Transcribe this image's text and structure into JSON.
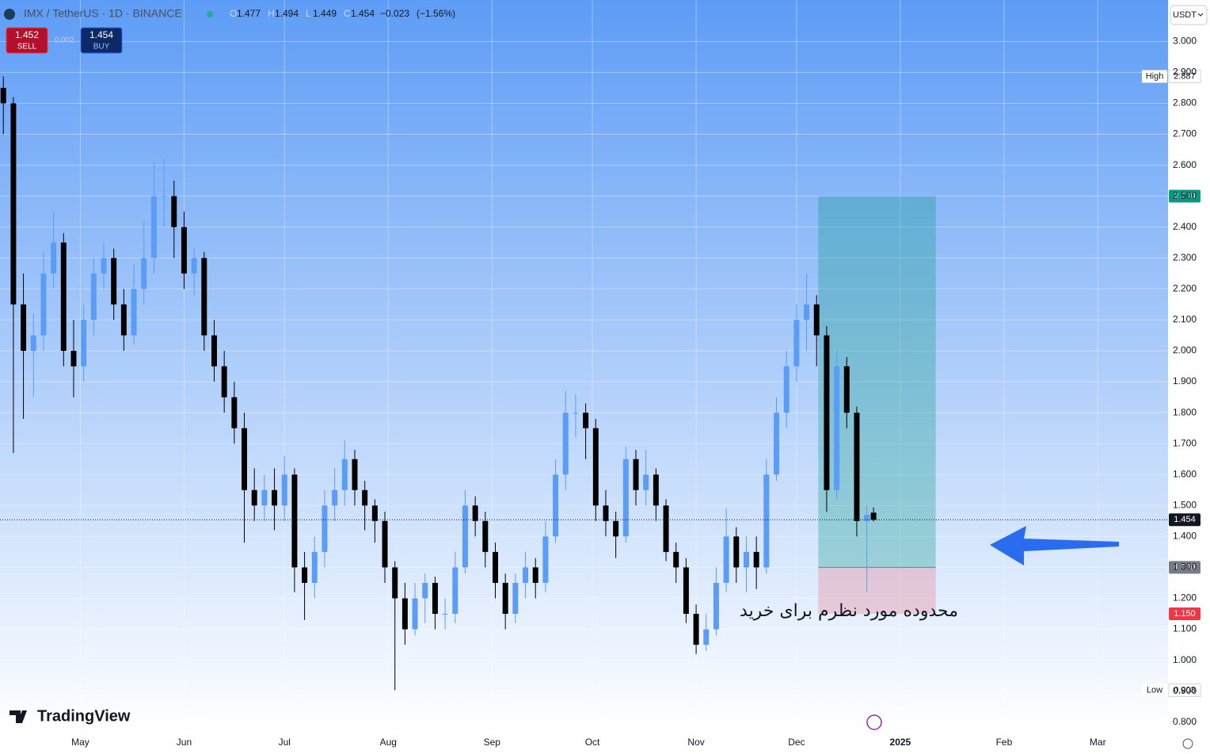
{
  "chart_data": {
    "type": "candlestick",
    "symbol": "IMX / TetherUS · 1D · BINANCE",
    "ohlc": [
      {
        "label": "O",
        "value": 1.477
      },
      {
        "label": "H",
        "value": 1.494
      },
      {
        "label": "L",
        "value": 1.449
      },
      {
        "label": "C",
        "value": 1.454
      }
    ],
    "change": {
      "value": -0.023,
      "label": "−0.023"
    },
    "change_percent": {
      "value": -1.56,
      "label": "(−1.56%)"
    },
    "sell": {
      "price": 1.452,
      "label": "SELL"
    },
    "buy": {
      "price": 1.454,
      "label": "BUY"
    },
    "spread": 0.002,
    "currency": "USDT",
    "brand": "TradingView",
    "annotation": "محدوده مورد نظرم برای خرید",
    "up_color": "#5b9cf6",
    "down_color": "#000000",
    "grid": true,
    "xlim": [
      97,
      446
    ],
    "ylim": [
      0.766,
      3.134
    ],
    "xticks": [
      {
        "value": 121,
        "label": "May"
      },
      {
        "value": 152,
        "label": "Jun"
      },
      {
        "value": 182,
        "label": "Jul"
      },
      {
        "value": 213,
        "label": "Aug"
      },
      {
        "value": 244,
        "label": "Sep"
      },
      {
        "value": 274,
        "label": "Oct"
      },
      {
        "value": 305,
        "label": "Nov"
      },
      {
        "value": 335,
        "label": "Dec"
      },
      {
        "value": 366,
        "label": "2025"
      },
      {
        "value": 397,
        "label": "Feb"
      },
      {
        "value": 425,
        "label": "Mar"
      }
    ],
    "yticks": [
      {
        "value": 0.8,
        "label": "0.800"
      },
      {
        "value": 0.9,
        "label": "0.900"
      },
      {
        "value": 1.0,
        "label": "1.000"
      },
      {
        "value": 1.1,
        "label": "1.100"
      },
      {
        "value": 1.2,
        "label": "1.200"
      },
      {
        "value": 1.3,
        "label": "1.300"
      },
      {
        "value": 1.4,
        "label": "1.400"
      },
      {
        "value": 1.5,
        "label": "1.500"
      },
      {
        "value": 1.6,
        "label": "1.600"
      },
      {
        "value": 1.7,
        "label": "1.700"
      },
      {
        "value": 1.8,
        "label": "1.800"
      },
      {
        "value": 1.9,
        "label": "1.900"
      },
      {
        "value": 2.0,
        "label": "2.000"
      },
      {
        "value": 2.1,
        "label": "2.100"
      },
      {
        "value": 2.2,
        "label": "2.200"
      },
      {
        "value": 2.3,
        "label": "2.300"
      },
      {
        "value": 2.4,
        "label": "2.400"
      },
      {
        "value": 2.5,
        "label": "2.500"
      },
      {
        "value": 2.6,
        "label": "2.600"
      },
      {
        "value": 2.7,
        "label": "2.700"
      },
      {
        "value": 2.8,
        "label": "2.800"
      },
      {
        "value": 2.9,
        "label": "2.900"
      },
      {
        "value": 3.0,
        "label": "3.000"
      }
    ],
    "last_price": 1.454,
    "high": {
      "label": "High",
      "value": 2.887
    },
    "low": {
      "label": "Low",
      "value": 0.903
    },
    "position": {
      "start": 341.5,
      "end": 376.6,
      "entry": {
        "value": 1.3,
        "label": "1.300"
      },
      "target": {
        "value": 2.5,
        "label": "2.500"
      },
      "stop": {
        "value": 1.15,
        "label": "1.150"
      }
    },
    "candles": [
      [
        98,
        2.85,
        2.887,
        2.7,
        2.8
      ],
      [
        101,
        2.8,
        2.82,
        1.67,
        2.15
      ],
      [
        104,
        2.15,
        2.25,
        1.78,
        2.0
      ],
      [
        107,
        2.0,
        2.12,
        1.85,
        2.05
      ],
      [
        110,
        2.05,
        2.32,
        2.0,
        2.25
      ],
      [
        113,
        2.25,
        2.45,
        2.2,
        2.35
      ],
      [
        116,
        2.35,
        2.38,
        1.95,
        2.0
      ],
      [
        119,
        2.0,
        2.1,
        1.85,
        1.95
      ],
      [
        122,
        1.95,
        2.15,
        1.9,
        2.1
      ],
      [
        125,
        2.1,
        2.3,
        2.05,
        2.25
      ],
      [
        128,
        2.25,
        2.35,
        2.2,
        2.3
      ],
      [
        131,
        2.3,
        2.33,
        2.1,
        2.15
      ],
      [
        134,
        2.15,
        2.2,
        2.0,
        2.05
      ],
      [
        137,
        2.05,
        2.28,
        2.02,
        2.2
      ],
      [
        140,
        2.2,
        2.42,
        2.15,
        2.3
      ],
      [
        143,
        2.3,
        2.61,
        2.25,
        2.5
      ],
      [
        146,
        2.5,
        2.62,
        2.4,
        2.5
      ],
      [
        149,
        2.5,
        2.55,
        2.3,
        2.4
      ],
      [
        152,
        2.4,
        2.45,
        2.2,
        2.25
      ],
      [
        155,
        2.25,
        2.33,
        2.18,
        2.3
      ],
      [
        158,
        2.3,
        2.32,
        2.0,
        2.05
      ],
      [
        161,
        2.05,
        2.1,
        1.9,
        1.95
      ],
      [
        164,
        1.95,
        2.0,
        1.8,
        1.85
      ],
      [
        167,
        1.85,
        1.9,
        1.7,
        1.75
      ],
      [
        170,
        1.75,
        1.8,
        1.38,
        1.55
      ],
      [
        173,
        1.55,
        1.62,
        1.45,
        1.5
      ],
      [
        176,
        1.5,
        1.6,
        1.45,
        1.55
      ],
      [
        179,
        1.55,
        1.62,
        1.42,
        1.5
      ],
      [
        182,
        1.5,
        1.66,
        1.45,
        1.6
      ],
      [
        185,
        1.6,
        1.62,
        1.22,
        1.3
      ],
      [
        188,
        1.3,
        1.35,
        1.13,
        1.25
      ],
      [
        191,
        1.25,
        1.4,
        1.2,
        1.35
      ],
      [
        194,
        1.35,
        1.55,
        1.3,
        1.5
      ],
      [
        197,
        1.5,
        1.62,
        1.45,
        1.55
      ],
      [
        200,
        1.55,
        1.71,
        1.5,
        1.65
      ],
      [
        203,
        1.65,
        1.68,
        1.5,
        1.55
      ],
      [
        206,
        1.55,
        1.58,
        1.42,
        1.5
      ],
      [
        209,
        1.5,
        1.52,
        1.38,
        1.45
      ],
      [
        212,
        1.45,
        1.48,
        1.25,
        1.3
      ],
      [
        215,
        1.3,
        1.32,
        0.903,
        1.2
      ],
      [
        218,
        1.2,
        1.25,
        1.05,
        1.1
      ],
      [
        221,
        1.1,
        1.25,
        1.08,
        1.2
      ],
      [
        224,
        1.2,
        1.28,
        1.12,
        1.25
      ],
      [
        227,
        1.25,
        1.27,
        1.1,
        1.15
      ],
      [
        230,
        1.15,
        1.2,
        1.1,
        1.15
      ],
      [
        233,
        1.15,
        1.35,
        1.12,
        1.3
      ],
      [
        236,
        1.3,
        1.55,
        1.28,
        1.5
      ],
      [
        239,
        1.5,
        1.53,
        1.4,
        1.45
      ],
      [
        242,
        1.45,
        1.48,
        1.3,
        1.35
      ],
      [
        245,
        1.35,
        1.38,
        1.2,
        1.25
      ],
      [
        248,
        1.25,
        1.28,
        1.1,
        1.15
      ],
      [
        251,
        1.15,
        1.28,
        1.12,
        1.25
      ],
      [
        254,
        1.25,
        1.35,
        1.2,
        1.3
      ],
      [
        257,
        1.3,
        1.33,
        1.2,
        1.25
      ],
      [
        260,
        1.25,
        1.45,
        1.22,
        1.4
      ],
      [
        263,
        1.4,
        1.65,
        1.38,
        1.6
      ],
      [
        266,
        1.6,
        1.87,
        1.55,
        1.8
      ],
      [
        269,
        1.8,
        1.86,
        1.72,
        1.8
      ],
      [
        272,
        1.8,
        1.83,
        1.65,
        1.75
      ],
      [
        275,
        1.75,
        1.78,
        1.45,
        1.5
      ],
      [
        278,
        1.5,
        1.55,
        1.4,
        1.45
      ],
      [
        281,
        1.45,
        1.48,
        1.33,
        1.4
      ],
      [
        284,
        1.4,
        1.69,
        1.38,
        1.65
      ],
      [
        287,
        1.65,
        1.68,
        1.5,
        1.55
      ],
      [
        290,
        1.55,
        1.68,
        1.5,
        1.6
      ],
      [
        293,
        1.6,
        1.62,
        1.45,
        1.5
      ],
      [
        296,
        1.5,
        1.52,
        1.32,
        1.35
      ],
      [
        299,
        1.35,
        1.38,
        1.25,
        1.3
      ],
      [
        302,
        1.3,
        1.33,
        1.12,
        1.15
      ],
      [
        305,
        1.15,
        1.18,
        1.02,
        1.05
      ],
      [
        308,
        1.05,
        1.15,
        1.03,
        1.1
      ],
      [
        311,
        1.1,
        1.3,
        1.08,
        1.25
      ],
      [
        314,
        1.25,
        1.49,
        1.22,
        1.4
      ],
      [
        317,
        1.4,
        1.43,
        1.25,
        1.3
      ],
      [
        320,
        1.3,
        1.4,
        1.22,
        1.35
      ],
      [
        323,
        1.35,
        1.4,
        1.23,
        1.3
      ],
      [
        326,
        1.3,
        1.65,
        1.28,
        1.6
      ],
      [
        329,
        1.6,
        1.85,
        1.58,
        1.8
      ],
      [
        332,
        1.8,
        2.0,
        1.75,
        1.95
      ],
      [
        335,
        1.95,
        2.15,
        1.9,
        2.1
      ],
      [
        338,
        2.1,
        2.25,
        2.0,
        2.15
      ],
      [
        341,
        2.15,
        2.18,
        1.95,
        2.05
      ],
      [
        344,
        2.05,
        2.08,
        1.48,
        1.55
      ],
      [
        347,
        1.55,
        2.0,
        1.52,
        1.95
      ],
      [
        350,
        1.95,
        1.98,
        1.75,
        1.8
      ],
      [
        353,
        1.8,
        1.82,
        1.4,
        1.45
      ],
      [
        356,
        1.45,
        1.5,
        1.22,
        1.47
      ],
      [
        358,
        1.477,
        1.494,
        1.449,
        1.454
      ]
    ]
  }
}
